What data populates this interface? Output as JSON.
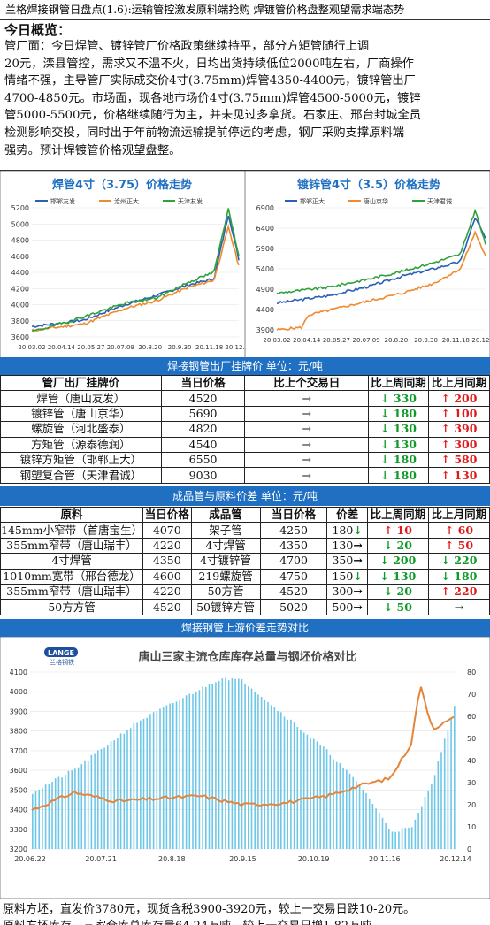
{
  "header": {
    "title": "兰格焊接钢管日盘点(1.6):运输管控激发原料端抢购 焊镀管价格盘整观望需求端态势"
  },
  "summary": {
    "heading": "今日概览：",
    "lines": [
      "管厂面：今日焊管、镀锌管厂价格政策继续持平，部分方矩管随行上调",
      "20元，滦县管控，需求又不温不火，日均出货持续低位2000吨左右，厂商操作",
      "情绪不强，主导管厂实际成交价4寸(3.75mm)焊管4350-4400元，镀锌管出厂",
      "4700-4850元。市场面，现各地市场价4寸(3.75mm)焊管4500-5000元，镀锌",
      "管5000-5500元，价格继续随行为主，并未见过多拿货。石家庄、邢台封城全员",
      "检测影响交投，同时出于年前物流运输提前停运的考虑，钢厂采购支撑原料端",
      "强势。预计焊镀管价格观望盘整。"
    ]
  },
  "colors": {
    "band": "#1f6fc2",
    "up": "#e01919",
    "down": "#0f9a29",
    "ratio_bar": "#6fc7e8",
    "price_line": "#e5853a"
  },
  "chart_data": [
    {
      "type": "line",
      "title": "焊管4寸（3.75）价格走势",
      "series": [
        {
          "name": "邯郸友发"
        },
        {
          "name": "沧州正大"
        },
        {
          "name": "天津友发"
        }
      ],
      "ylim": [
        3600,
        5200
      ],
      "yticks": [
        "5200",
        "5000",
        "4800",
        "4600",
        "4400",
        "4200",
        "4000",
        "3800",
        "3600"
      ],
      "xticks": [
        "20.03.02",
        "20.04.14",
        "20.05.27",
        "20.07.09",
        "20.8.20",
        "20.9.30",
        "20.11.18",
        "20.12.30"
      ]
    },
    {
      "type": "line",
      "title": "镀锌管4寸（3.5）价格走势",
      "series": [
        {
          "name": "邯郸正大"
        },
        {
          "name": "唐山京华"
        },
        {
          "name": "天津君诚"
        }
      ],
      "ylim": [
        3900,
        6900
      ],
      "yticks": [
        "6900",
        "6400",
        "5900",
        "5400",
        "4900",
        "4400",
        "3900"
      ],
      "xticks": [
        "20.03.02",
        "20.04.14",
        "20.05.27",
        "20.07.09",
        "20.8.20",
        "20.9.30",
        "20.11.18",
        "20.12.30"
      ]
    },
    {
      "type": "bar",
      "title": "唐山三家主流仓库库存总量与钢坯价格对比",
      "ylim_left": [
        3200,
        4100
      ],
      "ylim_right": [
        0,
        80
      ],
      "yticks_left": [
        "4100",
        "4000",
        "3900",
        "3800",
        "3700",
        "3600",
        "3500",
        "3400",
        "3300",
        "3200"
      ],
      "yticks_right": [
        "80",
        "70",
        "60",
        "50",
        "40",
        "30",
        "20",
        "10",
        "0"
      ],
      "xticks": [
        "20.06.22",
        "20.07.21",
        "20.8.18",
        "20.9.15",
        "20.10.19",
        "20.11.16",
        "20.12.14"
      ]
    }
  ],
  "table1": {
    "band": "焊接钢管出厂挂牌价    单位：元/吨",
    "headers": [
      "管厂出厂挂牌价",
      "当日价格",
      "比上个交易日",
      "比上周同期",
      "比上月同期"
    ],
    "rows": [
      {
        "name": "焊管（唐山友发）",
        "price": "4520",
        "day": "→",
        "week": "330",
        "week_dir": "down",
        "month": "200",
        "month_dir": "up"
      },
      {
        "name": "镀锌管（唐山京华）",
        "price": "5690",
        "day": "→",
        "week": "180",
        "week_dir": "down",
        "month": "100",
        "month_dir": "up"
      },
      {
        "name": "螺旋管（河北盛泰）",
        "price": "4820",
        "day": "→",
        "week": "130",
        "week_dir": "down",
        "month": "390",
        "month_dir": "up"
      },
      {
        "name": "方矩管（源泰德润）",
        "price": "4540",
        "day": "→",
        "week": "130",
        "week_dir": "down",
        "month": "300",
        "month_dir": "up"
      },
      {
        "name": "镀锌方矩管（邯郸正大）",
        "price": "6550",
        "day": "→",
        "week": "180",
        "week_dir": "down",
        "month": "580",
        "month_dir": "up"
      },
      {
        "name": "钢塑复合管（天津君诚）",
        "price": "9030",
        "day": "→",
        "week": "180",
        "week_dir": "down",
        "month": "130",
        "month_dir": "up"
      }
    ]
  },
  "table2": {
    "band": "成品管与原料价差    单位：元/吨",
    "headers": [
      "原料",
      "当日价格",
      "成品管",
      "当日价格",
      "价差",
      "比上周同期",
      "比上月同期"
    ],
    "rows": [
      {
        "raw": "145mm小窄带（首唐宝生）",
        "rp": "4070",
        "prod": "架子管",
        "pp": "4250",
        "diff": "180",
        "diff_dir": "↓",
        "week": "10",
        "week_dir": "up",
        "month": "60",
        "month_dir": "up"
      },
      {
        "raw": "355mm窄带（唐山瑞丰）",
        "rp": "4220",
        "prod": "4寸焊管",
        "pp": "4350",
        "diff": "130",
        "diff_dir": "→",
        "week": "20",
        "week_dir": "down",
        "month": "50",
        "month_dir": "up"
      },
      {
        "raw": "4寸焊管",
        "rp": "4350",
        "prod": "4寸镀锌管",
        "pp": "4700",
        "diff": "350",
        "diff_dir": "→",
        "week": "200",
        "week_dir": "down",
        "month": "220",
        "month_dir": "down"
      },
      {
        "raw": "1010mm宽带（邢台德龙）",
        "rp": "4600",
        "prod": "219螺旋管",
        "pp": "4750",
        "diff": "150",
        "diff_dir": "↓",
        "week": "130",
        "week_dir": "down",
        "month": "180",
        "month_dir": "down"
      },
      {
        "raw": "355mm窄带（唐山瑞丰）",
        "rp": "4220",
        "prod": "50方管",
        "pp": "4520",
        "diff": "300",
        "diff_dir": "→",
        "week": "20",
        "week_dir": "down",
        "month": "220",
        "month_dir": "up"
      },
      {
        "raw": "50方方管",
        "rp": "4520",
        "prod": "50镀锌方管",
        "pp": "5020",
        "diff": "500",
        "diff_dir": "→",
        "week": "50",
        "week_dir": "down",
        "month": "→",
        "month_dir": "flat"
      }
    ]
  },
  "band3": "焊接钢管上游价差走势对比",
  "logo_text": "兰格钢铁",
  "footer": {
    "line1": "原料方坯，直发价3780元，现货含税3900-3920元，较上一交易日跌10-20元。",
    "line2": "原料方坯库存，三家仓库总库存量64.24万吨，较上一交易日增1.82万吨。"
  }
}
